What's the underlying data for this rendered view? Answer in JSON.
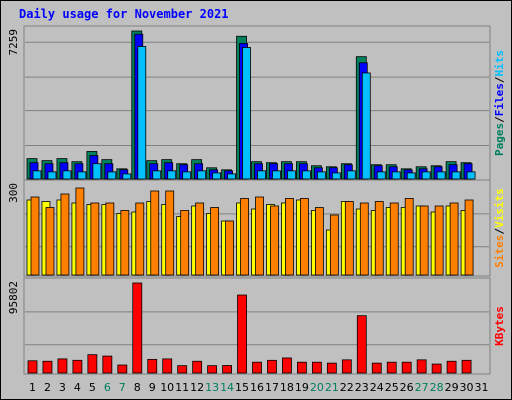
{
  "title": "Daily usage for November 2021",
  "colors": {
    "pages": "#00805c",
    "files": "#0000ff",
    "hits": "#00c0ff",
    "sites": "#ff8000",
    "visits": "#ffff00",
    "kbytes": "#ff0000",
    "weekend_label": "#00805c",
    "weekday_label": "#000000"
  },
  "chart_data": [
    {
      "type": "bar",
      "title": "",
      "max_label": "7259",
      "legend": [
        {
          "name": "Pages",
          "color": "#00805c"
        },
        {
          "name": "/",
          "color": "#000000"
        },
        {
          "name": "Files",
          "color": "#0000ff"
        },
        {
          "name": "/",
          "color": "#000000"
        },
        {
          "name": "Hits",
          "color": "#00c0ff"
        }
      ],
      "ylim": [
        0,
        7259
      ],
      "categories": [
        "1",
        "2",
        "3",
        "4",
        "5",
        "6",
        "7",
        "8",
        "9",
        "10",
        "11",
        "12",
        "13",
        "14",
        "15",
        "16",
        "17",
        "18",
        "19",
        "20",
        "21",
        "22",
        "23",
        "24",
        "25",
        "26",
        "27",
        "28",
        "29",
        "30",
        "31"
      ],
      "series": [
        {
          "name": "Pages",
          "values": [
            1000,
            900,
            1000,
            850,
            1350,
            950,
            500,
            7259,
            900,
            950,
            750,
            950,
            550,
            450,
            7000,
            850,
            800,
            850,
            850,
            650,
            600,
            750,
            6000,
            700,
            700,
            500,
            600,
            650,
            850,
            800,
            null
          ]
        },
        {
          "name": "Files",
          "values": [
            800,
            750,
            800,
            750,
            1150,
            750,
            450,
            7100,
            750,
            800,
            700,
            750,
            450,
            400,
            6650,
            750,
            750,
            750,
            750,
            550,
            550,
            700,
            5700,
            650,
            600,
            450,
            500,
            600,
            700,
            750,
            null
          ]
        },
        {
          "name": "Hits",
          "values": [
            400,
            350,
            400,
            350,
            750,
            350,
            250,
            6500,
            400,
            400,
            350,
            400,
            300,
            250,
            6450,
            400,
            400,
            400,
            400,
            350,
            300,
            400,
            5200,
            350,
            350,
            300,
            350,
            350,
            350,
            350,
            null
          ]
        }
      ]
    },
    {
      "type": "bar",
      "title": "",
      "max_label": "300",
      "legend": [
        {
          "name": "Sites",
          "color": "#ff8000"
        },
        {
          "name": "/",
          "color": "#000000"
        },
        {
          "name": "Visits",
          "color": "#ffff00"
        }
      ],
      "ylim": [
        0,
        300
      ],
      "categories": [
        "1",
        "2",
        "3",
        "4",
        "5",
        "6",
        "7",
        "8",
        "9",
        "10",
        "11",
        "12",
        "13",
        "14",
        "15",
        "16",
        "17",
        "18",
        "19",
        "20",
        "21",
        "22",
        "23",
        "24",
        "25",
        "26",
        "27",
        "28",
        "29",
        "30",
        "31"
      ],
      "series": [
        {
          "name": "Visits",
          "values": [
            250,
            245,
            250,
            240,
            235,
            235,
            205,
            210,
            245,
            235,
            195,
            230,
            205,
            180,
            240,
            220,
            235,
            240,
            250,
            215,
            150,
            245,
            220,
            215,
            225,
            225,
            230,
            210,
            230,
            215,
            null
          ]
        },
        {
          "name": "Sites",
          "values": [
            260,
            225,
            270,
            290,
            240,
            240,
            215,
            240,
            280,
            280,
            215,
            240,
            225,
            180,
            255,
            260,
            230,
            255,
            255,
            225,
            200,
            245,
            240,
            245,
            240,
            255,
            230,
            230,
            240,
            250,
            null
          ]
        }
      ]
    },
    {
      "type": "bar",
      "title": "",
      "max_label": "95802",
      "legend": [
        {
          "name": "KBytes",
          "color": "#ff0000"
        }
      ],
      "ylim": [
        0,
        95802
      ],
      "categories": [
        "1",
        "2",
        "3",
        "4",
        "5",
        "6",
        "7",
        "8",
        "9",
        "10",
        "11",
        "12",
        "13",
        "14",
        "15",
        "16",
        "17",
        "18",
        "19",
        "20",
        "21",
        "22",
        "23",
        "24",
        "25",
        "26",
        "27",
        "28",
        "29",
        "30",
        "31"
      ],
      "series": [
        {
          "name": "KBytes",
          "values": [
            13000,
            12500,
            15000,
            13500,
            19500,
            18000,
            8500,
            95802,
            14500,
            15000,
            7800,
            12500,
            7800,
            8000,
            83000,
            11500,
            13500,
            16000,
            11500,
            11500,
            10500,
            14000,
            61000,
            10500,
            11500,
            11500,
            14000,
            9500,
            12500,
            13500,
            null
          ]
        }
      ]
    }
  ],
  "x_labels": [
    {
      "text": "1",
      "weekend": false
    },
    {
      "text": "2",
      "weekend": false
    },
    {
      "text": "3",
      "weekend": false
    },
    {
      "text": "4",
      "weekend": false
    },
    {
      "text": "5",
      "weekend": false
    },
    {
      "text": "6",
      "weekend": true
    },
    {
      "text": "7",
      "weekend": true
    },
    {
      "text": "8",
      "weekend": false
    },
    {
      "text": "9",
      "weekend": false
    },
    {
      "text": "10",
      "weekend": false
    },
    {
      "text": "11",
      "weekend": false
    },
    {
      "text": "12",
      "weekend": false
    },
    {
      "text": "13",
      "weekend": true
    },
    {
      "text": "14",
      "weekend": true
    },
    {
      "text": "15",
      "weekend": false
    },
    {
      "text": "16",
      "weekend": false
    },
    {
      "text": "17",
      "weekend": false
    },
    {
      "text": "18",
      "weekend": false
    },
    {
      "text": "19",
      "weekend": false
    },
    {
      "text": "20",
      "weekend": true
    },
    {
      "text": "21",
      "weekend": true
    },
    {
      "text": "22",
      "weekend": false
    },
    {
      "text": "23",
      "weekend": false
    },
    {
      "text": "24",
      "weekend": false
    },
    {
      "text": "25",
      "weekend": false
    },
    {
      "text": "26",
      "weekend": false
    },
    {
      "text": "27",
      "weekend": true
    },
    {
      "text": "28",
      "weekend": true
    },
    {
      "text": "29",
      "weekend": false
    },
    {
      "text": "30",
      "weekend": false
    },
    {
      "text": "31",
      "weekend": false
    }
  ]
}
